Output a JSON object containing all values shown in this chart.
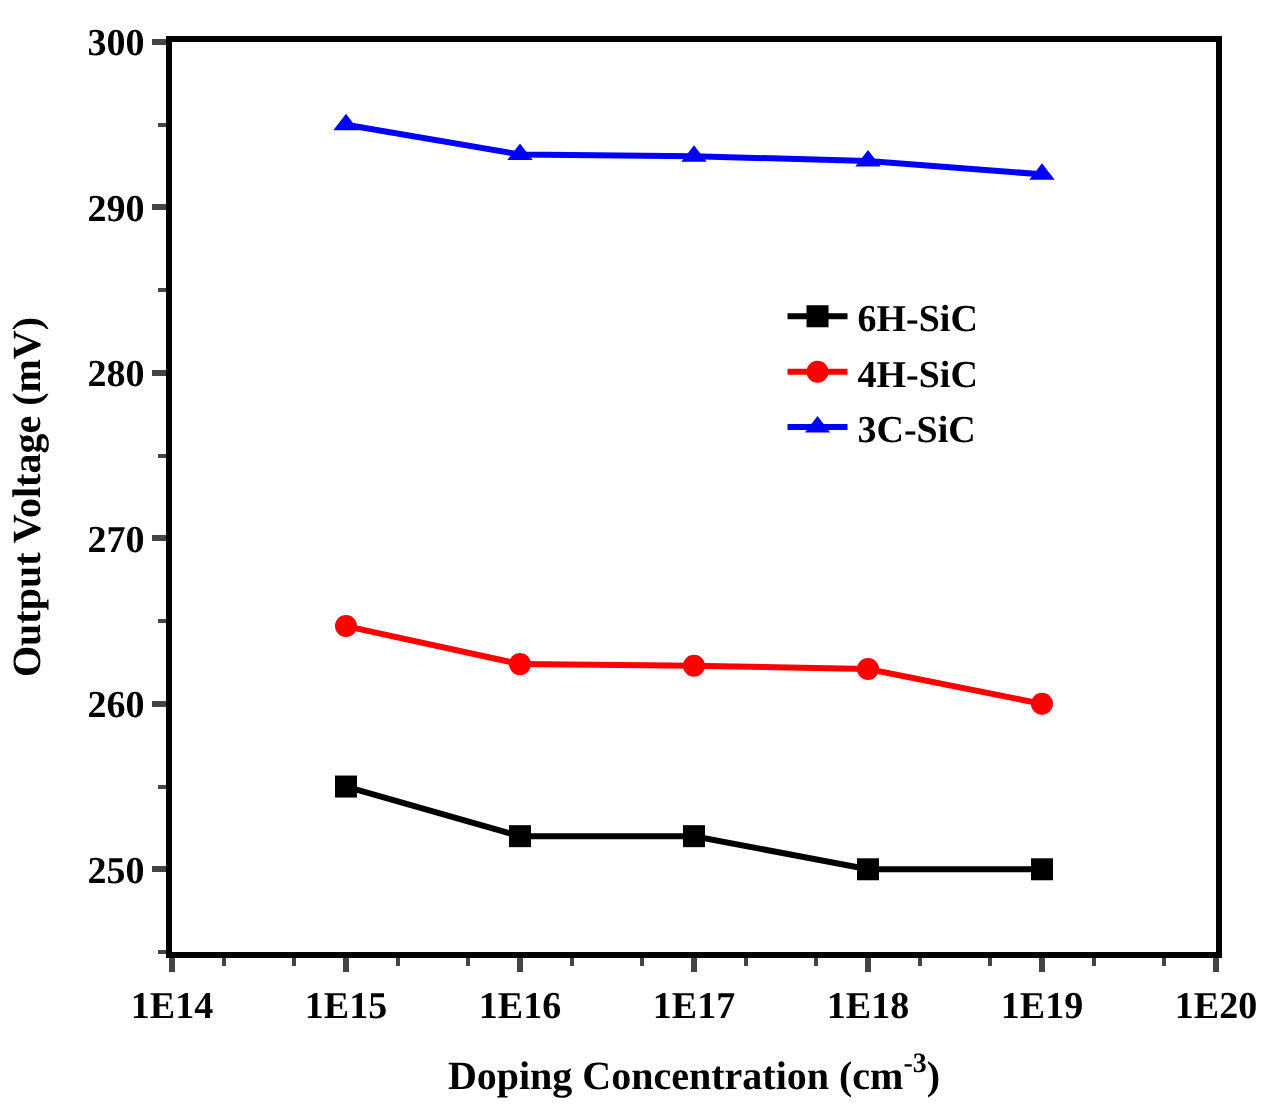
{
  "chart_data": {
    "type": "line",
    "xlabel": "Doping Concentration (cm$^{-3}$)",
    "ylabel": "Output Voltage (mV)",
    "x": [
      1000000000000000.0,
      1e+16,
      1e+17,
      1e+18,
      1e+19
    ],
    "series": [
      {
        "name": "6H-SiC",
        "color": "#000000",
        "marker": "square",
        "values": [
          255,
          252,
          252,
          250,
          250
        ]
      },
      {
        "name": "4H-SiC",
        "color": "#ff0000",
        "marker": "circle",
        "values": [
          264.7,
          262.4,
          262.3,
          262.1,
          260
        ]
      },
      {
        "name": "3C-SiC",
        "color": "#0000ff",
        "marker": "triangle",
        "values": [
          295,
          293.2,
          293.1,
          292.8,
          292
        ]
      }
    ],
    "log": "x",
    "xlim": [
      100000000000000.0,
      1e+20
    ],
    "xticks": [
      {
        "value": 100000000000000.0,
        "label": "1E14"
      },
      {
        "value": 1000000000000000.0,
        "label": "1E15"
      },
      {
        "value": 1e+16,
        "label": "1E16"
      },
      {
        "value": 1e+17,
        "label": "1E17"
      },
      {
        "value": 1e+18,
        "label": "1E18"
      },
      {
        "value": 1e+19,
        "label": "1E19"
      },
      {
        "value": 1e+20,
        "label": "1E20"
      }
    ],
    "ylim": [
      245,
      300
    ],
    "yticks": [
      250,
      260,
      270,
      280,
      290,
      300
    ],
    "legend": "top right",
    "line_style": "solid"
  }
}
